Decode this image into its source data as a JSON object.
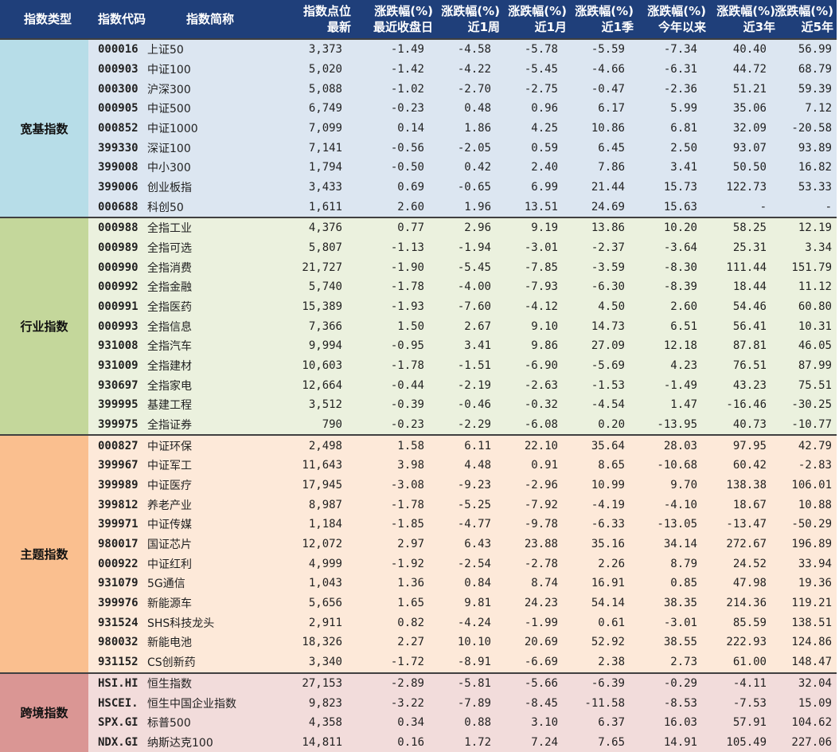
{
  "headers": {
    "category": "指数类型",
    "code": "指数代码",
    "name": "指数简称",
    "points": [
      "指数点位",
      "最新"
    ],
    "day": [
      "涨跌幅(%)",
      "最近收盘日"
    ],
    "week": [
      "涨跌幅(%)",
      "近1周"
    ],
    "month": [
      "涨跌幅(%)",
      "近1月"
    ],
    "quarter": [
      "涨跌幅(%)",
      "近1季"
    ],
    "ytd": [
      "涨跌幅(%)",
      "今年以来"
    ],
    "y3": [
      "涨跌幅(%)",
      "近3年"
    ],
    "y5": [
      "涨跌幅(%)",
      "近5年"
    ]
  },
  "groups": [
    {
      "category": "宽基指数",
      "color": "#b7dde8",
      "rows_bg": "#dce6f1",
      "rows": [
        [
          "000016",
          "上证50",
          "3,373",
          "-1.49",
          "-4.58",
          "-5.78",
          "-5.59",
          "-7.34",
          "40.40",
          "56.99"
        ],
        [
          "000903",
          "中证100",
          "5,020",
          "-1.42",
          "-4.22",
          "-5.45",
          "-4.66",
          "-6.31",
          "44.72",
          "68.79"
        ],
        [
          "000300",
          "沪深300",
          "5,088",
          "-1.02",
          "-2.70",
          "-2.75",
          "-0.47",
          "-2.36",
          "51.21",
          "59.39"
        ],
        [
          "000905",
          "中证500",
          "6,749",
          "-0.23",
          "0.48",
          "0.96",
          "6.17",
          "5.99",
          "35.06",
          "7.12"
        ],
        [
          "000852",
          "中证1000",
          "7,099",
          "0.14",
          "1.86",
          "4.25",
          "10.86",
          "6.81",
          "32.09",
          "-20.58"
        ],
        [
          "399330",
          "深证100",
          "7,141",
          "-0.56",
          "-2.05",
          "0.59",
          "6.45",
          "2.50",
          "93.07",
          "93.89"
        ],
        [
          "399008",
          "中小300",
          "1,794",
          "-0.50",
          "0.42",
          "2.40",
          "7.86",
          "3.41",
          "50.50",
          "16.82"
        ],
        [
          "399006",
          "创业板指",
          "3,433",
          "0.69",
          "-0.65",
          "6.99",
          "21.44",
          "15.73",
          "122.73",
          "53.33"
        ],
        [
          "000688",
          "科创50",
          "1,611",
          "2.60",
          "1.96",
          "13.51",
          "24.69",
          "15.63",
          "-",
          "-"
        ]
      ]
    },
    {
      "category": "行业指数",
      "color": "#c4d79b",
      "rows_bg": "#ebf1de",
      "rows": [
        [
          "000988",
          "全指工业",
          "4,376",
          "0.77",
          "2.96",
          "9.19",
          "13.86",
          "10.20",
          "58.25",
          "12.19"
        ],
        [
          "000989",
          "全指可选",
          "5,807",
          "-1.13",
          "-1.94",
          "-3.01",
          "-2.37",
          "-3.64",
          "25.31",
          "3.34"
        ],
        [
          "000990",
          "全指消费",
          "21,727",
          "-1.90",
          "-5.45",
          "-7.85",
          "-3.59",
          "-8.30",
          "111.44",
          "151.79"
        ],
        [
          "000992",
          "全指金融",
          "5,740",
          "-1.78",
          "-4.00",
          "-7.93",
          "-6.30",
          "-8.39",
          "18.44",
          "11.12"
        ],
        [
          "000991",
          "全指医药",
          "15,389",
          "-1.93",
          "-7.60",
          "-4.12",
          "4.50",
          "2.60",
          "54.46",
          "60.80"
        ],
        [
          "000993",
          "全指信息",
          "7,366",
          "1.50",
          "2.67",
          "9.10",
          "14.73",
          "6.51",
          "56.41",
          "10.31"
        ],
        [
          "931008",
          "全指汽车",
          "9,994",
          "-0.95",
          "3.41",
          "9.86",
          "27.09",
          "12.18",
          "87.81",
          "46.05"
        ],
        [
          "931009",
          "全指建材",
          "10,603",
          "-1.78",
          "-1.51",
          "-6.90",
          "-5.69",
          "4.23",
          "76.51",
          "87.99"
        ],
        [
          "930697",
          "全指家电",
          "12,664",
          "-0.44",
          "-2.19",
          "-2.63",
          "-1.53",
          "-1.49",
          "43.23",
          "75.51"
        ],
        [
          "399995",
          "基建工程",
          "3,512",
          "-0.39",
          "-0.46",
          "-0.32",
          "-4.54",
          "1.47",
          "-16.46",
          "-30.25"
        ],
        [
          "399975",
          "全指证券",
          "790",
          "-0.23",
          "-2.29",
          "-6.08",
          "0.20",
          "-13.95",
          "40.73",
          "-10.77"
        ]
      ]
    },
    {
      "category": "主题指数",
      "color": "#fabf8f",
      "rows_bg": "#fde9d9",
      "rows": [
        [
          "000827",
          "中证环保",
          "2,498",
          "1.58",
          "6.11",
          "22.10",
          "35.64",
          "28.03",
          "97.95",
          "42.79"
        ],
        [
          "399967",
          "中证军工",
          "11,643",
          "3.98",
          "4.48",
          "0.91",
          "8.65",
          "-10.68",
          "60.42",
          "-2.83"
        ],
        [
          "399989",
          "中证医疗",
          "17,945",
          "-3.08",
          "-9.23",
          "-2.96",
          "10.99",
          "9.70",
          "138.38",
          "106.01"
        ],
        [
          "399812",
          "养老产业",
          "8,987",
          "-1.78",
          "-5.25",
          "-7.92",
          "-4.19",
          "-4.10",
          "18.67",
          "10.88"
        ],
        [
          "399971",
          "中证传媒",
          "1,184",
          "-1.85",
          "-4.77",
          "-9.78",
          "-6.33",
          "-13.05",
          "-13.47",
          "-50.29"
        ],
        [
          "980017",
          "国证芯片",
          "12,072",
          "2.97",
          "6.43",
          "23.88",
          "35.16",
          "34.14",
          "272.67",
          "196.89"
        ],
        [
          "000922",
          "中证红利",
          "4,999",
          "-1.92",
          "-2.54",
          "-2.78",
          "2.26",
          "8.79",
          "24.52",
          "33.94"
        ],
        [
          "931079",
          "5G通信",
          "1,043",
          "1.36",
          "0.84",
          "8.74",
          "16.91",
          "0.85",
          "47.98",
          "19.36"
        ],
        [
          "399976",
          "新能源车",
          "5,656",
          "1.65",
          "9.81",
          "24.23",
          "54.14",
          "38.35",
          "214.36",
          "119.21"
        ],
        [
          "931524",
          "SHS科技龙头",
          "2,911",
          "0.82",
          "-4.24",
          "-1.99",
          "0.61",
          "-3.01",
          "85.59",
          "138.51"
        ],
        [
          "980032",
          "新能电池",
          "18,326",
          "2.27",
          "10.10",
          "20.69",
          "52.92",
          "38.55",
          "222.93",
          "124.86"
        ],
        [
          "931152",
          "CS创新药",
          "3,340",
          "-1.72",
          "-8.91",
          "-6.69",
          "2.38",
          "2.73",
          "61.00",
          "148.47"
        ]
      ]
    },
    {
      "category": "跨境指数",
      "color": "#da9694",
      "rows_bg": "#f2dcdb",
      "rows": [
        [
          "HSI.HI",
          "恒生指数",
          "27,153",
          "-2.89",
          "-5.81",
          "-5.66",
          "-6.39",
          "-0.29",
          "-4.11",
          "32.04"
        ],
        [
          "HSCEI.",
          "恒生中国企业指数",
          "9,823",
          "-3.22",
          "-7.89",
          "-8.45",
          "-11.58",
          "-8.53",
          "-7.53",
          "15.09"
        ],
        [
          "SPX.GI",
          "标普500",
          "4,358",
          "0.34",
          "0.88",
          "3.10",
          "6.37",
          "16.03",
          "57.91",
          "104.62"
        ],
        [
          "NDX.GI",
          "纳斯达克100",
          "14,811",
          "0.16",
          "1.72",
          "7.24",
          "7.65",
          "14.91",
          "105.49",
          "227.06"
        ]
      ]
    }
  ]
}
